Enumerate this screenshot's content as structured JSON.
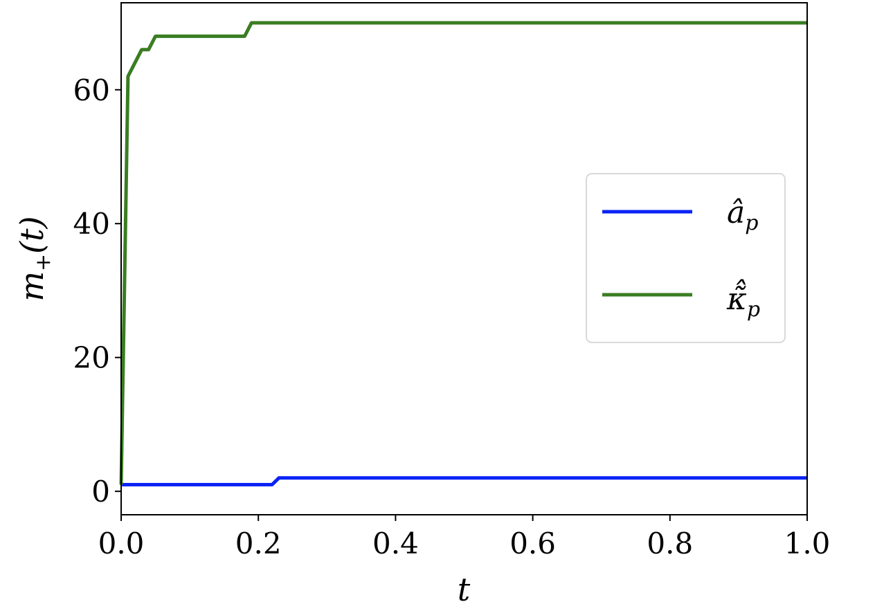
{
  "chart_data": {
    "type": "line",
    "xlabel": "t",
    "ylabel_main": "m",
    "ylabel_sub": "+",
    "ylabel_tail": "(t)",
    "xlim": [
      0.0,
      1.0
    ],
    "ylim": [
      -3.5,
      73
    ],
    "grid": false,
    "legend_position": "center-right",
    "x_ticks": [
      0.0,
      0.2,
      0.4,
      0.6,
      0.8,
      1.0
    ],
    "x_tick_labels": [
      "0.0",
      "0.2",
      "0.4",
      "0.6",
      "0.8",
      "1.0"
    ],
    "y_ticks": [
      0,
      20,
      40,
      60
    ],
    "y_tick_labels": [
      "0",
      "20",
      "40",
      "60"
    ],
    "series": [
      {
        "name_main": "â",
        "name_sub": "p",
        "color": "#0a23f5",
        "x": [
          0.0,
          0.22,
          0.23,
          1.0
        ],
        "y": [
          1,
          1,
          2,
          2
        ]
      },
      {
        "name_main": "κ̃̂",
        "name_sub": "p",
        "color": "#3a7d22",
        "x": [
          0.0,
          0.01,
          0.03,
          0.04,
          0.05,
          0.18,
          0.19,
          1.0
        ],
        "y": [
          1,
          62,
          66,
          66,
          68,
          68,
          70,
          70
        ]
      }
    ]
  }
}
